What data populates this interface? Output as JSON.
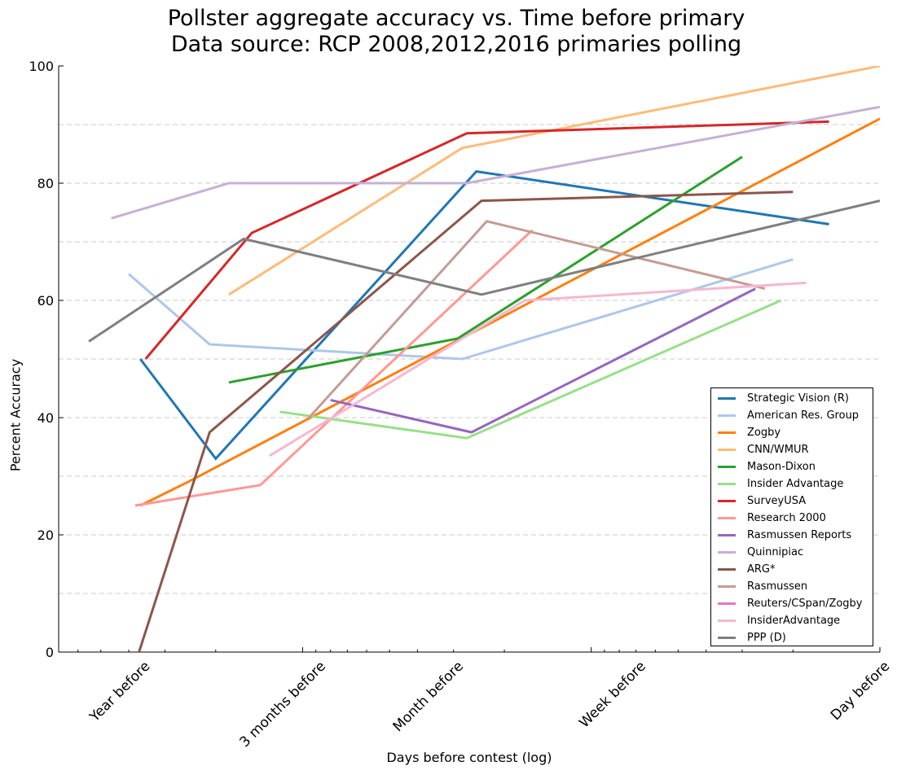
{
  "chart_data": {
    "type": "line",
    "title_line1": "Pollster aggregate accuracy vs. Time before primary",
    "title_line2": "Data source: RCP 2008,2012,2016 primaries polling",
    "xlabel": "Days before contest (log)",
    "ylabel": "Percent Accuracy",
    "xscale": "log",
    "xlim": [
      1,
      700
    ],
    "ylim": [
      0,
      100
    ],
    "yticks": [
      0,
      20,
      40,
      60,
      80,
      100
    ],
    "xticks": [
      {
        "value": 365,
        "label": "Year before"
      },
      {
        "value": 90,
        "label": "3 months before"
      },
      {
        "value": 30,
        "label": "Month before"
      },
      {
        "value": 7,
        "label": "Week before"
      },
      {
        "value": 1,
        "label": "Day before"
      }
    ],
    "grid": "horizontal dashed",
    "legend_position": "lower-right",
    "series": [
      {
        "name": "Strategic Vision (R)",
        "color": "#1f77b4",
        "points": [
          [
            365,
            50
          ],
          [
            200,
            33
          ],
          [
            25,
            82
          ],
          [
            1.5,
            73
          ]
        ]
      },
      {
        "name": "American Res. Group",
        "color": "#aec7e8",
        "points": [
          [
            400,
            64.5
          ],
          [
            210,
            52.5
          ],
          [
            28,
            50
          ],
          [
            2,
            67
          ]
        ]
      },
      {
        "name": "Zogby",
        "color": "#ff7f0e",
        "points": [
          [
            365,
            25
          ],
          [
            250,
            29
          ],
          [
            1,
            91
          ]
        ]
      },
      {
        "name": "CNN/WMUR",
        "color": "#ffbb78",
        "points": [
          [
            180,
            61
          ],
          [
            28,
            86
          ],
          [
            1,
            100
          ]
        ]
      },
      {
        "name": "Mason-Dixon",
        "color": "#2ca02c",
        "points": [
          [
            180,
            46
          ],
          [
            29,
            53.5
          ],
          [
            3,
            84.5
          ]
        ]
      },
      {
        "name": "Insider Advantage",
        "color": "#98df8a",
        "points": [
          [
            120,
            41
          ],
          [
            27,
            36.5
          ],
          [
            2.2,
            60
          ]
        ]
      },
      {
        "name": "SurveyUSA",
        "color": "#d62728",
        "points": [
          [
            350,
            50
          ],
          [
            150,
            71.5
          ],
          [
            27,
            88.5
          ],
          [
            1.5,
            90.5
          ]
        ]
      },
      {
        "name": "Research 2000",
        "color": "#ff9896",
        "points": [
          [
            380,
            25
          ],
          [
            140,
            28.5
          ],
          [
            16,
            72
          ]
        ]
      },
      {
        "name": "Rasmussen Reports",
        "color": "#9467bd",
        "points": [
          [
            80,
            43
          ],
          [
            26,
            37.5
          ],
          [
            2.7,
            62
          ]
        ]
      },
      {
        "name": "Quinnipiac",
        "color": "#c5b0d5",
        "points": [
          [
            460,
            74
          ],
          [
            180,
            80
          ],
          [
            27,
            80
          ],
          [
            1,
            93
          ]
        ]
      },
      {
        "name": "ARG*",
        "color": "#8c564b",
        "points": [
          [
            380,
            -2
          ],
          [
            210,
            37.5
          ],
          [
            24,
            77
          ],
          [
            2,
            78.5
          ]
        ]
      },
      {
        "name": "Rasmussen",
        "color": "#c49c94",
        "points": [
          [
            95,
            40
          ],
          [
            23,
            73.5
          ],
          [
            2.5,
            62
          ]
        ]
      },
      {
        "name": "Reuters/CSpan/Zogby",
        "color": "#e377c2",
        "points": []
      },
      {
        "name": "InsiderAdvantage",
        "color": "#f7b6d2",
        "points": [
          [
            130,
            33.5
          ],
          [
            17,
            60
          ],
          [
            1.8,
            63
          ]
        ]
      },
      {
        "name": "PPP (D)",
        "color": "#7f7f7f",
        "points": [
          [
            550,
            53
          ],
          [
            160,
            70.5
          ],
          [
            24,
            61
          ],
          [
            1,
            77
          ]
        ]
      }
    ]
  }
}
